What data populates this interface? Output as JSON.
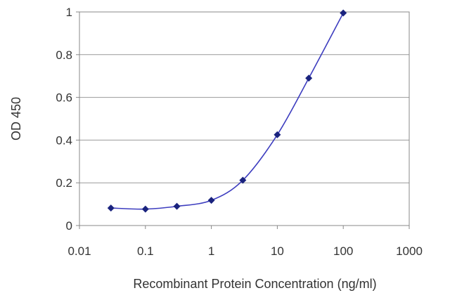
{
  "chart_data": {
    "type": "line",
    "title": "",
    "xlabel": "Recombinant Protein Concentration (ng/ml)",
    "ylabel": "OD 450",
    "x_scale": "log",
    "xlim": [
      0.01,
      1000
    ],
    "ylim": [
      0,
      1
    ],
    "x_ticks": [
      "0.01",
      "0.1",
      "1",
      "10",
      "100",
      "1000"
    ],
    "y_ticks": [
      "0",
      "0.2",
      "0.4",
      "0.6",
      "0.8",
      "1"
    ],
    "grid": "horizontal",
    "legend": "none",
    "series": [
      {
        "color": "#1a237e",
        "x": [
          0.03,
          0.1,
          0.3,
          1,
          3,
          10,
          30,
          100
        ],
        "y": [
          0.082,
          0.077,
          0.09,
          0.118,
          0.212,
          0.425,
          0.69,
          0.995
        ]
      }
    ]
  }
}
